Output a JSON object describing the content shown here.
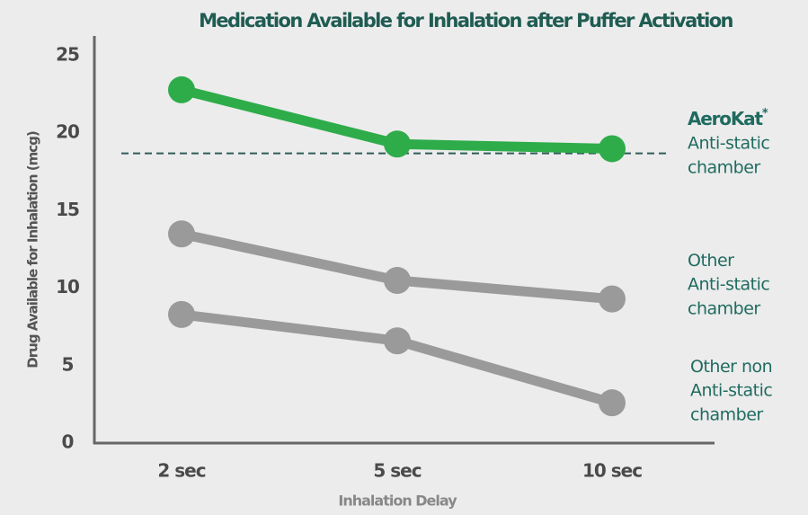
{
  "chart_data": {
    "type": "line",
    "title": "Medication Available for Inhalation after Puffer Activation",
    "x_label": "Inhalation Delay",
    "y_label": "Drug Available for Inhalation (mcg)",
    "categories": [
      "2 sec",
      "5 sec",
      "10 sec"
    ],
    "ylim": [
      0,
      25
    ],
    "yticks": [
      0,
      5,
      10,
      15,
      20,
      25
    ],
    "reference_line": 18.7,
    "series": [
      {
        "name": "AeroKat",
        "name_sup": "*",
        "label_lines": [
          "Anti-static",
          "chamber"
        ],
        "color": "#2eac4a",
        "values": [
          22.8,
          19.3,
          19.0
        ]
      },
      {
        "name": "Other",
        "label_lines": [
          "Anti-static",
          "chamber"
        ],
        "color": "#9a9a9b",
        "values": [
          13.5,
          10.5,
          9.3
        ]
      },
      {
        "name": "Other non",
        "label_lines": [
          "Anti-static",
          "chamber"
        ],
        "color": "#9a9a9b",
        "values": [
          8.3,
          6.6,
          2.6
        ]
      }
    ]
  }
}
